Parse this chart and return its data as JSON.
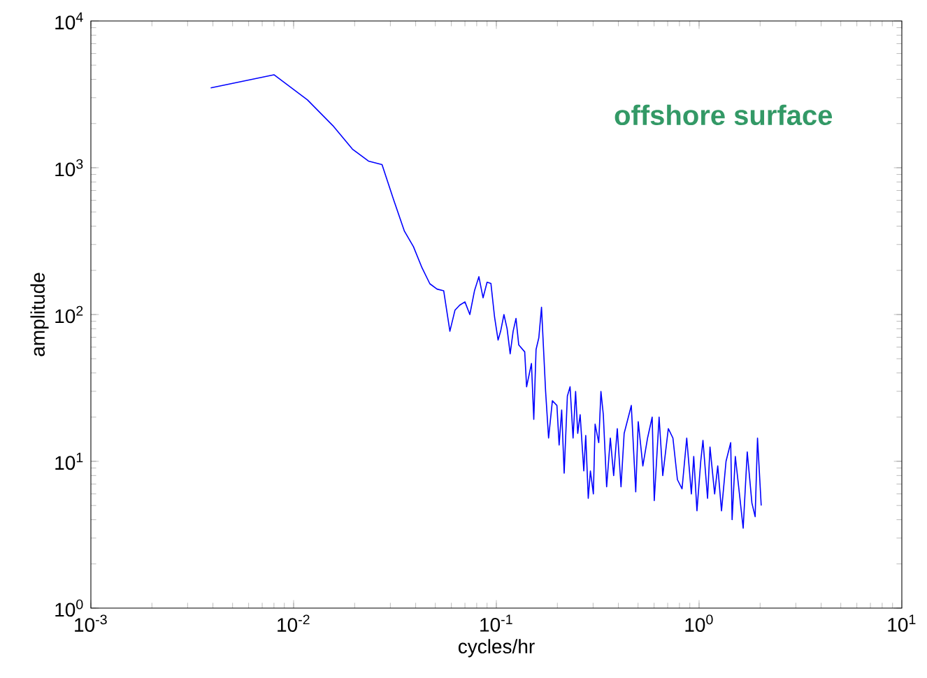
{
  "chart_data": {
    "type": "line",
    "xlabel": "cycles/hr",
    "ylabel": "amplitude",
    "log": "xy",
    "grid": false,
    "marker": "none",
    "line_style": "solid",
    "xlim": [
      0.001,
      10
    ],
    "ylim": [
      1,
      10000
    ],
    "xticks": [
      {
        "value": 0.001,
        "label": "10$^{-3}$"
      },
      {
        "value": 0.01,
        "label": "10$^{-2}$"
      },
      {
        "value": 0.1,
        "label": "10$^{-1}$"
      },
      {
        "value": 1,
        "label": "10$^{0}$"
      },
      {
        "value": 10,
        "label": "10$^{1}$"
      }
    ],
    "yticks": [
      {
        "value": 1,
        "label": "10$^{0}$"
      },
      {
        "value": 10,
        "label": "10$^{1}$"
      },
      {
        "value": 100,
        "label": "10$^{2}$"
      },
      {
        "value": 1000,
        "label": "10$^{3}$"
      },
      {
        "value": 10000,
        "label": "10$^{4}$"
      }
    ],
    "annotations": [
      "offshore surface"
    ],
    "series": [
      {
        "color": "#0000ff",
        "x": [
          0.0039,
          0.008,
          0.0117,
          0.0156,
          0.0195,
          0.0234,
          0.0273,
          0.0312,
          0.0352,
          0.039,
          0.043,
          0.047,
          0.051,
          0.055,
          0.059,
          0.0625,
          0.066,
          0.07,
          0.074,
          0.078,
          0.082,
          0.086,
          0.09,
          0.094,
          0.098,
          0.102,
          0.105,
          0.109,
          0.113,
          0.117,
          0.121,
          0.125,
          0.129,
          0.138,
          0.141,
          0.149,
          0.153,
          0.157,
          0.162,
          0.167,
          0.175,
          0.181,
          0.189,
          0.199,
          0.204,
          0.21,
          0.216,
          0.224,
          0.231,
          0.239,
          0.246,
          0.252,
          0.259,
          0.27,
          0.276,
          0.284,
          0.291,
          0.301,
          0.307,
          0.32,
          0.328,
          0.337,
          0.35,
          0.365,
          0.379,
          0.395,
          0.412,
          0.427,
          0.451,
          0.463,
          0.487,
          0.501,
          0.528,
          0.557,
          0.587,
          0.601,
          0.635,
          0.662,
          0.705,
          0.743,
          0.782,
          0.824,
          0.869,
          0.916,
          0.941,
          0.976,
          1.019,
          1.045,
          1.101,
          1.132,
          1.193,
          1.236,
          1.29,
          1.358,
          1.432,
          1.455,
          1.509,
          1.59,
          1.65,
          1.728,
          1.822,
          1.89,
          1.942,
          2.025
        ],
        "values": [
          3500,
          4300,
          2900,
          1940,
          1340,
          1110,
          1050,
          600,
          370,
          290,
          208,
          162,
          149,
          145,
          77,
          107,
          116,
          122,
          100,
          145,
          181,
          130,
          166,
          163,
          96,
          67,
          77,
          100,
          80,
          54,
          77,
          94,
          62,
          55.7,
          32.2,
          46.4,
          19.3,
          57.8,
          69.4,
          112,
          29.9,
          14.4,
          25.9,
          24.0,
          12.9,
          22.4,
          8.3,
          27.8,
          32.2,
          14.4,
          29.9,
          15.5,
          20.8,
          8.6,
          15.0,
          5.6,
          8.6,
          6.0,
          17.9,
          13.4,
          29.9,
          20.8,
          6.7,
          14.4,
          8.0,
          16.7,
          6.7,
          15.5,
          20.8,
          24.0,
          6.2,
          18.6,
          9.3,
          14.4,
          20.0,
          5.4,
          20.0,
          8.0,
          16.7,
          14.4,
          7.5,
          6.5,
          14.4,
          6.0,
          10.8,
          4.6,
          10,
          13.9,
          5.6,
          12.5,
          6.0,
          9.3,
          4.6,
          10,
          13.4,
          4.0,
          10.8,
          5.6,
          3.5,
          11.6,
          5.2,
          4.2,
          14.4,
          5.0
        ]
      }
    ]
  }
}
